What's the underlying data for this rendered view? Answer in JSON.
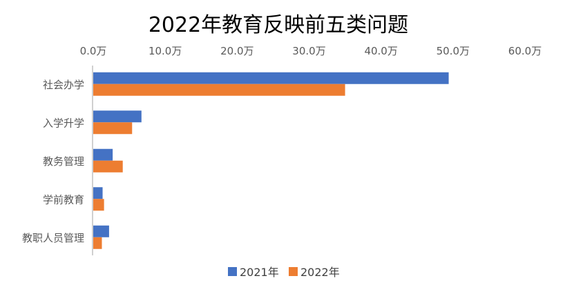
{
  "chart_data": {
    "type": "bar",
    "orientation": "horizontal",
    "title": "2022年教育反映前五类问题",
    "categories": [
      "社会办学",
      "入学升学",
      "教务管理",
      "学前教育",
      "教职人员管理"
    ],
    "series": [
      {
        "name": "2021年",
        "color": "#4472C4",
        "values": [
          49.4,
          6.7,
          2.7,
          1.3,
          2.2
        ]
      },
      {
        "name": "2022年",
        "color": "#ED7D31",
        "values": [
          35.0,
          5.4,
          4.1,
          1.5,
          1.2
        ]
      }
    ],
    "unit": "万",
    "xlim": [
      0,
      60
    ],
    "xticks": [
      "0.0万",
      "10.0万",
      "20.0万",
      "30.0万",
      "40.0万",
      "50.0万",
      "60.0万"
    ],
    "axis_position": "top",
    "grid": false,
    "legend": "bottom"
  }
}
